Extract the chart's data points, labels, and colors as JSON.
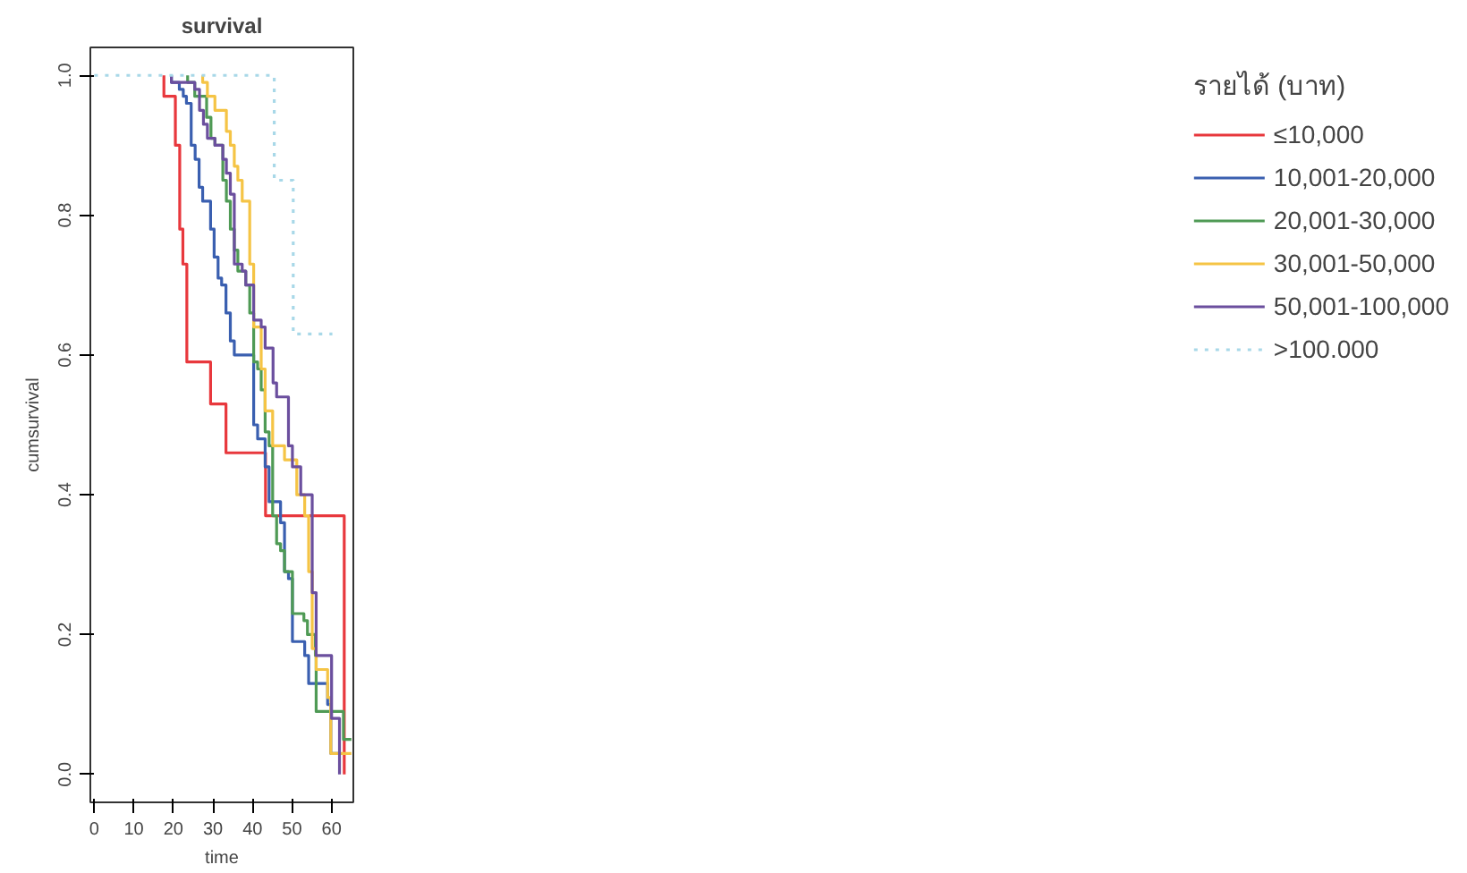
{
  "chart_data": {
    "type": "step",
    "title": "survival",
    "xlabel": "time",
    "ylabel": "cumsurvival",
    "legend_title": "รายได้ (บาท)",
    "xlim": [
      -1,
      65.5
    ],
    "ylim": [
      -0.04,
      1.04
    ],
    "xticks": [
      0,
      10,
      20,
      30,
      40,
      50,
      60
    ],
    "yticks": [
      {
        "value": 0,
        "label": "0.0"
      },
      {
        "value": 0.2,
        "label": "0.2"
      },
      {
        "value": 0.4,
        "label": "0.4"
      },
      {
        "value": 0.6,
        "label": "0.6"
      },
      {
        "value": 0.8,
        "label": "0.8"
      },
      {
        "value": 1,
        "label": "1.0"
      }
    ],
    "grid": false,
    "legend": "right",
    "marker": "none",
    "series": [
      {
        "name": "≤10,000",
        "color": "#e8383d",
        "x": [
          17.6,
          17.6,
          20.5,
          21.6,
          22.4,
          23.4,
          29.4,
          33.3,
          43.3,
          63.2
        ],
        "values": [
          1.0,
          0.97,
          0.9,
          0.78,
          0.73,
          0.59,
          0.53,
          0.46,
          0.37,
          0.0
        ]
      },
      {
        "name": "10,001-20,000",
        "color": "#3a5fb0",
        "x": [
          19.5,
          19.5,
          21.5,
          22.5,
          23.3,
          24.5,
          25.5,
          26.5,
          27.4,
          29.4,
          30.3,
          31.3,
          32.2,
          33.3,
          34.4,
          35.4,
          40.3,
          41.3,
          43.2,
          44.2,
          47.1,
          48.1,
          49.1,
          50.1,
          53.2,
          54.2,
          59.0,
          59.8,
          62.0
        ],
        "values": [
          1.0,
          0.99,
          0.98,
          0.97,
          0.96,
          0.9,
          0.88,
          0.84,
          0.82,
          0.78,
          0.74,
          0.71,
          0.7,
          0.66,
          0.62,
          0.6,
          0.5,
          0.48,
          0.44,
          0.39,
          0.36,
          0.29,
          0.28,
          0.19,
          0.17,
          0.13,
          0.1,
          0.03,
          0.03
        ]
      },
      {
        "name": "20,001-30,000",
        "color": "#4f9a55",
        "x": [
          23.6,
          23.6,
          25.4,
          28.4,
          29.5,
          30.5,
          32.5,
          33.4,
          34.4,
          35.4,
          36.3,
          38.3,
          39.3,
          40.3,
          41.3,
          42.2,
          43.2,
          44.2,
          45.1,
          46.1,
          47.1,
          48.1,
          50.1,
          53.0,
          53.9,
          55.9,
          56.1,
          63.0,
          63.0,
          65.0
        ],
        "values": [
          1.0,
          0.99,
          0.97,
          0.94,
          0.91,
          0.9,
          0.85,
          0.82,
          0.78,
          0.75,
          0.72,
          0.7,
          0.66,
          0.59,
          0.58,
          0.55,
          0.49,
          0.47,
          0.37,
          0.33,
          0.32,
          0.29,
          0.23,
          0.22,
          0.2,
          0.17,
          0.09,
          0.07,
          0.05,
          0.05
        ]
      },
      {
        "name": "30,001-50,000",
        "color": "#f5c445",
        "x": [
          27.4,
          27.4,
          28.6,
          30.5,
          33.4,
          34.4,
          35.4,
          36.3,
          37.4,
          39.3,
          40.3,
          42.2,
          43.2,
          45.1,
          48.1,
          51.2,
          53.2,
          54.2,
          55.1,
          56.1,
          59.0,
          59.8,
          65.0
        ],
        "values": [
          1.0,
          0.99,
          0.97,
          0.95,
          0.92,
          0.9,
          0.87,
          0.85,
          0.82,
          0.73,
          0.64,
          0.58,
          0.52,
          0.47,
          0.45,
          0.4,
          0.37,
          0.29,
          0.18,
          0.15,
          0.11,
          0.03,
          0.03
        ]
      },
      {
        "name": "50,001-100,000",
        "color": "#6b4f9e",
        "x": [
          19.5,
          19.5,
          25.4,
          26.6,
          27.6,
          28.6,
          30.5,
          32.5,
          33.4,
          34.4,
          35.4,
          37.4,
          38.3,
          40.3,
          42.2,
          43.2,
          45.2,
          46.1,
          49.1,
          50.1,
          52.2,
          55.1,
          56.1,
          60.0,
          62.0
        ],
        "values": [
          1.0,
          0.99,
          0.98,
          0.95,
          0.93,
          0.91,
          0.9,
          0.88,
          0.86,
          0.83,
          0.73,
          0.72,
          0.7,
          0.65,
          0.64,
          0.61,
          0.56,
          0.54,
          0.47,
          0.44,
          0.4,
          0.26,
          0.17,
          0.08,
          0.0
        ]
      },
      {
        "name": ">100.000",
        "color": "#a8d8e8",
        "line_style": "dotted",
        "x": [
          0,
          45.5,
          50.3,
          60.2
        ],
        "values": [
          1.0,
          0.85,
          0.63,
          0.63
        ]
      }
    ]
  }
}
